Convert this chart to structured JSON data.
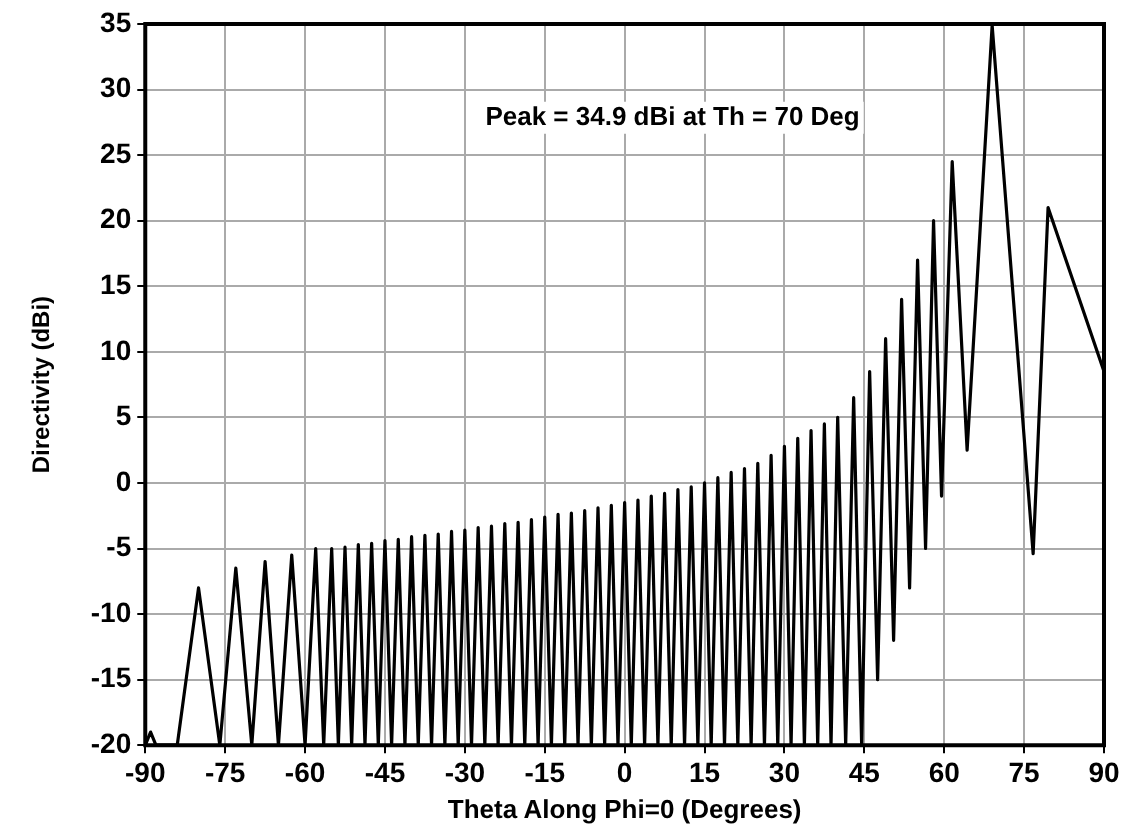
{
  "chart_data": {
    "type": "line",
    "xlabel": "Theta Along Phi=0 (Degrees)",
    "ylabel": "Directivity (dBi)",
    "annotations": [
      "Peak = 34.9 dBi at Th = 70 Deg"
    ],
    "series": [
      {
        "color": "#000000",
        "x": [
          -90,
          -89,
          -88,
          -84,
          -80,
          -76,
          -73,
          -70,
          -67.5,
          -65,
          -62.5,
          -60,
          -58,
          -56.5,
          -55,
          -53.75,
          -52.5,
          -51.25,
          -50,
          -48.75,
          -47.5,
          -46.25,
          -45,
          -43.75,
          -42.5,
          -41.25,
          -40,
          -38.75,
          -37.5,
          -36.25,
          -35,
          -33.75,
          -32.5,
          -31.25,
          -30,
          -28.75,
          -27.5,
          -26.25,
          -25,
          -23.75,
          -22.5,
          -21.25,
          -20,
          -18.75,
          -17.5,
          -16.25,
          -15,
          -13.75,
          -12.5,
          -11.25,
          -10,
          -8.75,
          -7.5,
          -6.25,
          -5,
          -3.75,
          -2.5,
          -1.25,
          0,
          1.25,
          2.5,
          3.75,
          5,
          6.25,
          7.5,
          8.75,
          10,
          11.25,
          12.5,
          13.75,
          15,
          16.25,
          17.5,
          18.75,
          20,
          21.25,
          22.5,
          23.75,
          25,
          26.25,
          27.5,
          28.75,
          30,
          31.25,
          32.5,
          33.75,
          35,
          36.25,
          37.5,
          38.75,
          40,
          41.5,
          43,
          44.5,
          46,
          47.5,
          49,
          50.5,
          52,
          53.5,
          55,
          56.5,
          58,
          59.5,
          61.5,
          64.3,
          69,
          76.7,
          79.5,
          90
        ],
        "values": [
          -20,
          -19,
          -20,
          -20,
          -8,
          -20,
          -6.5,
          -20,
          -6,
          -20,
          -5.5,
          -20,
          -5,
          -20,
          -5,
          -20,
          -4.9,
          -20,
          -4.7,
          -20,
          -4.6,
          -20,
          -4.4,
          -20,
          -4.3,
          -20,
          -4.1,
          -20,
          -4,
          -20,
          -3.9,
          -20,
          -3.7,
          -20,
          -3.6,
          -20,
          -3.4,
          -20,
          -3.3,
          -20,
          -3.1,
          -20,
          -3,
          -20,
          -2.8,
          -20,
          -2.6,
          -20,
          -2.4,
          -20,
          -2.3,
          -20,
          -2.1,
          -20,
          -1.9,
          -20,
          -1.7,
          -20,
          -1.5,
          -20,
          -1.3,
          -20,
          -1,
          -20,
          -0.8,
          -20,
          -0.5,
          -20,
          -0.3,
          -20,
          0,
          -20,
          0.4,
          -20,
          0.8,
          -20,
          1.1,
          -20,
          1.5,
          -20,
          2.1,
          -20,
          2.8,
          -20,
          3.4,
          -20,
          4,
          -20,
          4.5,
          -20,
          5,
          -20,
          6.5,
          -20,
          8.5,
          -15,
          11,
          -12,
          14,
          -8,
          17,
          -5,
          20,
          -1,
          24.5,
          2.5,
          34.9,
          -5.4,
          21,
          8.5
        ]
      }
    ],
    "xlim": [
      -90,
      90
    ],
    "xticks": [
      -90,
      -75,
      -60,
      -45,
      -30,
      -15,
      0,
      15,
      30,
      45,
      60,
      75,
      90
    ],
    "ylim": [
      -20,
      35
    ],
    "yticks": [
      -20,
      -15,
      -10,
      -5,
      0,
      5,
      10,
      15,
      20,
      25,
      30,
      35
    ],
    "grid": true,
    "legend": false,
    "marker": "none",
    "line_style": "solid"
  }
}
